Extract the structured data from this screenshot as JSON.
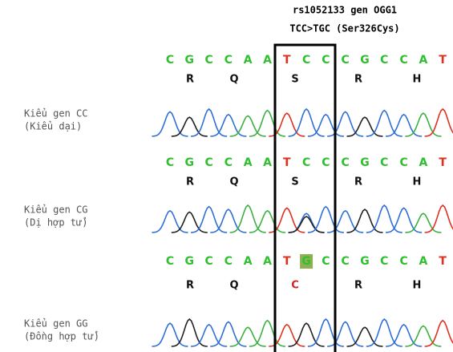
{
  "header": {
    "line1": "rs1052133 gen OGG1",
    "line2": "TCC>TGC (Ser326Cys)"
  },
  "panels": [
    {
      "bases": [
        "C",
        "G",
        "C",
        "C",
        "A",
        "A",
        "T",
        "C",
        "C",
        "C",
        "G",
        "C",
        "C",
        "A",
        "T"
      ],
      "amino_acids": [
        "R",
        "Q",
        "S",
        "R",
        "H"
      ],
      "label": [
        "Kiểu gen CC",
        "(Kiểu dại)"
      ]
    },
    {
      "bases": [
        "C",
        "G",
        "C",
        "C",
        "A",
        "A",
        "T",
        "C",
        "C",
        "C",
        "G",
        "C",
        "C",
        "A",
        "T"
      ],
      "amino_acids": [
        "R",
        "Q",
        "S",
        "R",
        "H"
      ],
      "label": [
        "Kiểu gen CG",
        "(Dị hợp tử)"
      ]
    },
    {
      "bases": [
        "C",
        "G",
        "C",
        "C",
        "A",
        "A",
        "T",
        "G",
        "C",
        "C",
        "G",
        "C",
        "C",
        "A",
        "T"
      ],
      "amino_acids": [
        "R",
        "Q",
        "C",
        "R",
        "H"
      ],
      "label": [
        "Kiểu gen GG",
        "(Đồng hợp tử)"
      ]
    }
  ]
}
